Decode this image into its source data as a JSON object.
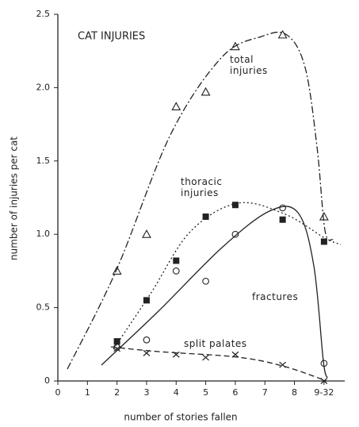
{
  "chart_data": {
    "type": "scatter",
    "title": "CAT INJURIES",
    "x_label": "number of stories fallen",
    "y_label": "number of injuries per cat",
    "xlim": [
      0,
      9.7
    ],
    "ylim": [
      0,
      2.5
    ],
    "xticks": [
      0,
      1,
      2,
      3,
      4,
      5,
      6,
      7,
      8,
      {
        "value": 9,
        "label": "9-32"
      }
    ],
    "yticks": [
      0,
      0.5,
      {
        "value": 1,
        "label": "1.0"
      },
      1.5,
      {
        "value": 2,
        "label": "2.0"
      },
      2.5
    ],
    "series": [
      {
        "name": "total injuries",
        "color": "#222222",
        "x": [
          2,
          3,
          4,
          5,
          6,
          7.6,
          9
        ],
        "values": [
          0.75,
          1.0,
          1.87,
          1.97,
          2.28,
          2.36,
          1.12
        ]
      },
      {
        "name": "thoracic injuries",
        "color": "#222222",
        "x": [
          2,
          3,
          4,
          5,
          6,
          7.6,
          9
        ],
        "values": [
          0.27,
          0.55,
          0.82,
          1.12,
          1.2,
          1.1,
          0.95
        ]
      },
      {
        "name": "fractures",
        "color": "#222222",
        "x": [
          2,
          3,
          4,
          5,
          6,
          7.6,
          9
        ],
        "values": [
          0.23,
          0.28,
          0.75,
          0.68,
          1.0,
          1.18,
          0.12
        ]
      },
      {
        "name": "split palates",
        "color": "#222222",
        "x": [
          2,
          3,
          4,
          5,
          6,
          7.6,
          9
        ],
        "values": [
          0.22,
          0.19,
          0.18,
          0.16,
          0.18,
          0.11,
          0.0
        ]
      }
    ]
  }
}
